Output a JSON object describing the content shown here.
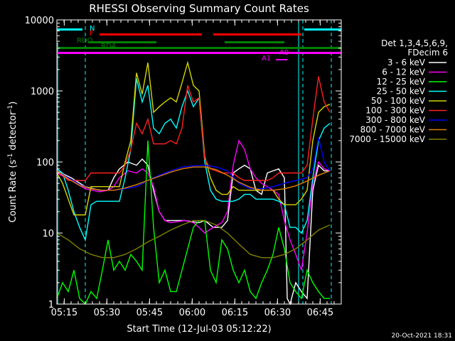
{
  "chart_data": {
    "type": "line",
    "title": "RHESSI Observing Summary Count Rates",
    "xlabel": "Start Time (12-Jul-03 05:12:22)",
    "ylabel_main": "Count Rate (s",
    "ylabel_sup1": "-1",
    "ylabel_mid": " detector",
    "ylabel_sup2": "-1",
    "ylabel_end": ")",
    "y_scale": "log",
    "ylim": [
      1,
      10000
    ],
    "xlim": [
      0,
      100
    ],
    "x_ticks": [
      {
        "label": "05:15",
        "x": 2.6
      },
      {
        "label": "05:30",
        "x": 17.6
      },
      {
        "label": "05:45",
        "x": 32.6
      },
      {
        "label": "06:00",
        "x": 47.6
      },
      {
        "label": "06:15",
        "x": 62.6
      },
      {
        "label": "06:30",
        "x": 77.6
      },
      {
        "label": "06:45",
        "x": 92.6
      }
    ],
    "y_ticks": [
      {
        "label": "1",
        "v": 1
      },
      {
        "label": "10",
        "v": 10
      },
      {
        "label": "100",
        "v": 100
      },
      {
        "label": "1000",
        "v": 1000
      },
      {
        "label": "10000",
        "v": 10000
      }
    ],
    "legend_position": "right",
    "legend_header_1": "Det 1,3,4,5,6,9,",
    "legend_header_2": "FDecim 6",
    "colors": {
      "background": "#000000",
      "axes": "#ffffff",
      "attenuator": "#ff00ff",
      "night": "#00ffff",
      "flare": "#ff0000",
      "saa_rd": "#008000",
      "vlines": "#00ffff"
    },
    "series": [
      {
        "name": "3 - 6 keV",
        "color": "#ffffff",
        "x": [
          0,
          5,
          10,
          15,
          18,
          20,
          22,
          25,
          28,
          30,
          32,
          34,
          36,
          38,
          40,
          45,
          50,
          52,
          55,
          58,
          60,
          62,
          64,
          66,
          68,
          70,
          72,
          74,
          76,
          78,
          80,
          81,
          82,
          84,
          86,
          88,
          90,
          92,
          94,
          96
        ],
        "y": [
          75,
          60,
          45,
          40,
          40,
          60,
          80,
          100,
          90,
          110,
          90,
          40,
          20,
          15,
          15,
          15,
          14,
          15,
          12,
          12,
          15,
          70,
          80,
          90,
          80,
          40,
          35,
          70,
          75,
          80,
          60,
          1.2,
          1,
          2,
          1.5,
          1.2,
          40,
          90,
          75,
          75
        ]
      },
      {
        "name": "6 - 12 keV",
        "color": "#ff00ff",
        "x": [
          0,
          5,
          10,
          15,
          18,
          20,
          22,
          25,
          28,
          30,
          32,
          34,
          36,
          38,
          40,
          45,
          48,
          50,
          52,
          55,
          58,
          60,
          62,
          64,
          66,
          68,
          70,
          72,
          74,
          76,
          78,
          80,
          82,
          84,
          86,
          88,
          90,
          92,
          94,
          96
        ],
        "y": [
          70,
          55,
          42,
          38,
          40,
          45,
          60,
          75,
          70,
          80,
          70,
          45,
          20,
          15,
          14,
          15,
          14,
          12,
          10,
          12,
          14,
          20,
          90,
          200,
          150,
          80,
          60,
          50,
          45,
          40,
          35,
          15,
          8,
          5,
          3,
          10,
          50,
          100,
          80,
          75
        ]
      },
      {
        "name": "12 - 25 keV",
        "color": "#00ff00",
        "x": [
          0,
          2,
          4,
          6,
          8,
          10,
          12,
          14,
          16,
          18,
          20,
          22,
          24,
          26,
          28,
          30,
          32,
          34,
          36,
          38,
          40,
          42,
          44,
          46,
          48,
          50,
          52,
          54,
          56,
          58,
          60,
          62,
          64,
          66,
          68,
          70,
          72,
          74,
          76,
          78,
          80,
          82,
          84,
          86,
          88,
          90,
          92,
          94,
          96
        ],
        "y": [
          1.2,
          2,
          1.5,
          3,
          1.2,
          1,
          1.5,
          1.2,
          3,
          8,
          3,
          4,
          3,
          5,
          4,
          3,
          200,
          12,
          2,
          3,
          1.5,
          1.5,
          3,
          6,
          12,
          15,
          15,
          3,
          2,
          8,
          6,
          3,
          2,
          3,
          1.5,
          1.2,
          2,
          3,
          5,
          12,
          6,
          2,
          1.5,
          1.2,
          3,
          2,
          1.5,
          1.2,
          1.2
        ]
      },
      {
        "name": "25 - 50 keV",
        "color": "#00ffff",
        "x": [
          0,
          2,
          4,
          6,
          8,
          10,
          12,
          14,
          16,
          18,
          20,
          22,
          24,
          26,
          28,
          30,
          32,
          34,
          36,
          38,
          40,
          42,
          44,
          46,
          48,
          50,
          52,
          54,
          56,
          58,
          60,
          62,
          64,
          66,
          68,
          70,
          72,
          74,
          76,
          78,
          80,
          82,
          84,
          86,
          88,
          90,
          92,
          94,
          96
        ],
        "y": [
          80,
          70,
          40,
          20,
          12,
          8,
          25,
          28,
          28,
          28,
          28,
          28,
          60,
          150,
          1500,
          700,
          1200,
          300,
          250,
          350,
          400,
          300,
          600,
          1000,
          600,
          800,
          100,
          40,
          30,
          28,
          28,
          28,
          30,
          35,
          35,
          30,
          30,
          30,
          30,
          28,
          25,
          12,
          12,
          10,
          15,
          60,
          200,
          300,
          350
        ]
      },
      {
        "name": "50 - 100 keV",
        "color": "#d4d400",
        "x": [
          0,
          2,
          4,
          6,
          8,
          10,
          12,
          14,
          16,
          18,
          20,
          22,
          24,
          26,
          28,
          30,
          32,
          34,
          36,
          38,
          40,
          42,
          44,
          46,
          48,
          50,
          52,
          54,
          56,
          58,
          60,
          62,
          64,
          66,
          68,
          70,
          72,
          74,
          76,
          78,
          80,
          82,
          84,
          86,
          88,
          90,
          92,
          94,
          96
        ],
        "y": [
          70,
          50,
          30,
          18,
          18,
          18,
          45,
          45,
          45,
          45,
          45,
          45,
          100,
          200,
          1800,
          900,
          2500,
          500,
          600,
          700,
          800,
          700,
          1300,
          2500,
          1200,
          1000,
          120,
          60,
          40,
          35,
          35,
          45,
          40,
          40,
          40,
          40,
          40,
          40,
          40,
          30,
          25,
          25,
          25,
          30,
          40,
          200,
          500,
          600,
          650
        ]
      },
      {
        "name": "100 - 300 keV",
        "color": "#ff2020",
        "x": [
          0,
          2,
          4,
          6,
          8,
          10,
          12,
          14,
          16,
          18,
          20,
          22,
          24,
          26,
          28,
          30,
          32,
          34,
          36,
          38,
          40,
          42,
          44,
          46,
          48,
          50,
          52,
          54,
          56,
          58,
          60,
          62,
          64,
          66,
          68,
          70,
          72,
          74,
          76,
          78,
          80,
          82,
          84,
          86,
          88,
          90,
          92,
          94,
          96
        ],
        "y": [
          75,
          65,
          55,
          55,
          55,
          55,
          70,
          70,
          70,
          70,
          70,
          70,
          90,
          150,
          350,
          250,
          400,
          180,
          180,
          180,
          200,
          180,
          300,
          1200,
          700,
          800,
          110,
          80,
          75,
          70,
          70,
          70,
          60,
          55,
          55,
          55,
          55,
          55,
          60,
          70,
          70,
          70,
          70,
          70,
          90,
          400,
          1600,
          700,
          500
        ]
      },
      {
        "name": "300 - 800 keV",
        "color": "#0000ff",
        "x": [
          0,
          4,
          8,
          12,
          16,
          20,
          24,
          28,
          32,
          34,
          36,
          40,
          44,
          48,
          52,
          56,
          60,
          64,
          68,
          72,
          76,
          80,
          84,
          88,
          90,
          92,
          94,
          96
        ],
        "y": [
          75,
          60,
          48,
          42,
          40,
          40,
          42,
          45,
          55,
          60,
          65,
          75,
          85,
          88,
          90,
          85,
          75,
          50,
          42,
          42,
          45,
          50,
          55,
          60,
          80,
          220,
          100,
          75
        ]
      },
      {
        "name": "800 - 7000 keV",
        "color": "#e08000",
        "x": [
          0,
          4,
          8,
          12,
          16,
          20,
          24,
          28,
          32,
          36,
          40,
          44,
          48,
          52,
          56,
          60,
          64,
          68,
          72,
          76,
          80,
          84,
          88,
          92,
          96
        ],
        "y": [
          75,
          58,
          47,
          42,
          40,
          40,
          43,
          48,
          55,
          63,
          72,
          80,
          85,
          85,
          78,
          65,
          52,
          44,
          40,
          40,
          42,
          46,
          54,
          65,
          75
        ]
      },
      {
        "name": "7000 - 15000 keV",
        "color": "#808000",
        "x": [
          0,
          4,
          8,
          12,
          16,
          20,
          24,
          28,
          32,
          36,
          40,
          44,
          48,
          52,
          56,
          60,
          64,
          68,
          72,
          76,
          80,
          84,
          88,
          92,
          96
        ],
        "y": [
          10,
          8,
          6,
          5,
          4.5,
          4.5,
          5,
          6,
          7.5,
          9,
          11,
          13,
          15,
          15,
          13,
          10,
          7,
          5,
          4.5,
          4.5,
          5,
          6,
          8,
          11,
          13
        ]
      }
    ],
    "flag_labels": {
      "n": "N",
      "f": "F",
      "rdo": "RDO",
      "rd4": "RD4",
      "a0": "A0",
      "a1": "A1"
    },
    "timestamp": "20-Oct-2021 18:31"
  }
}
